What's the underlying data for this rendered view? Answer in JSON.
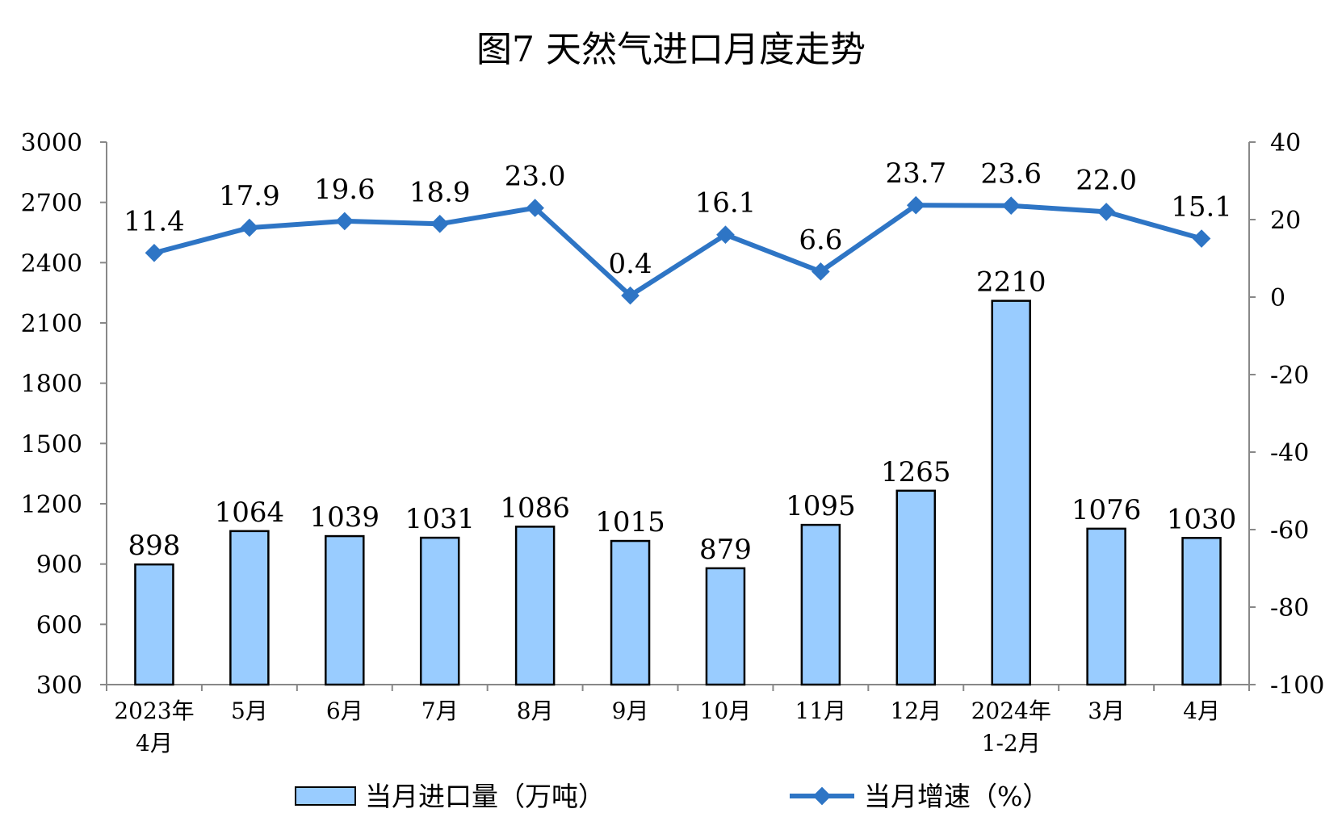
{
  "chart_data": {
    "type": "bar+line",
    "title": "图7 天然气进口月度走势",
    "categories": [
      [
        "2023年",
        "4月"
      ],
      [
        "5月"
      ],
      [
        "6月"
      ],
      [
        "7月"
      ],
      [
        "8月"
      ],
      [
        "9月"
      ],
      [
        "10月"
      ],
      [
        "11月"
      ],
      [
        "12月"
      ],
      [
        "2024年",
        "1-2月"
      ],
      [
        "3月"
      ],
      [
        "4月"
      ]
    ],
    "left_axis": {
      "min": 300,
      "max": 3000,
      "ticks": [
        "300",
        "600",
        "900",
        "1200",
        "1500",
        "1800",
        "2100",
        "2400",
        "2700",
        "3000"
      ]
    },
    "right_axis": {
      "min": -100,
      "max": 40,
      "ticks": [
        "-100",
        "-80",
        "-60",
        "-40",
        "-20",
        "0",
        "20",
        "40"
      ]
    },
    "series": [
      {
        "name": "当月进口量（万吨）",
        "type": "bar",
        "axis": "left",
        "color": "#99CCFF",
        "values": [
          898,
          1064,
          1039,
          1031,
          1086,
          1015,
          879,
          1095,
          1265,
          2210,
          1076,
          1030
        ],
        "labels": [
          "898",
          "1064",
          "1039",
          "1031",
          "1086",
          "1015",
          "879",
          "1095",
          "1265",
          "2210",
          "1076",
          "1030"
        ]
      },
      {
        "name": "当月增速（%）",
        "type": "line",
        "axis": "right",
        "color": "#2E75C5",
        "values": [
          11.4,
          17.9,
          19.6,
          18.9,
          23.0,
          0.4,
          16.1,
          6.6,
          23.7,
          23.6,
          22.0,
          15.1
        ],
        "labels": [
          "11.4",
          "17.9",
          "19.6",
          "18.9",
          "23.0",
          "0.4",
          "16.1",
          "6.6",
          "23.7",
          "23.6",
          "22.0",
          "15.1"
        ]
      }
    ],
    "legend_position": "bottom",
    "grid": false
  }
}
